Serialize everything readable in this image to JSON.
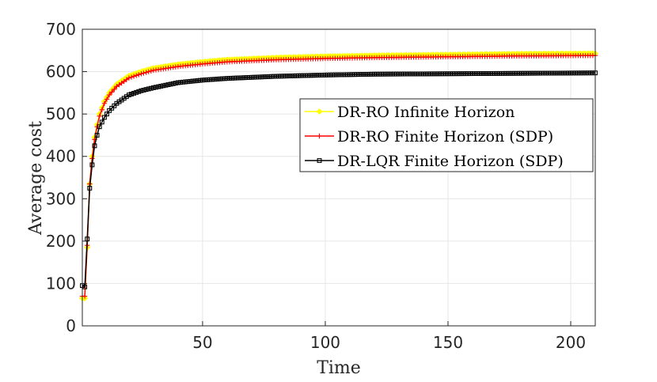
{
  "chart_data": {
    "type": "line",
    "xlabel": "Time",
    "ylabel": "Average cost",
    "xlim": [
      1,
      210
    ],
    "ylim": [
      0,
      700
    ],
    "xticks": [
      50,
      100,
      150,
      200
    ],
    "yticks": [
      0,
      100,
      200,
      300,
      400,
      500,
      600,
      700
    ],
    "xtick_labels": [
      "50",
      "100",
      "150",
      "200"
    ],
    "ytick_labels": [
      "0",
      "100",
      "200",
      "300",
      "400",
      "500",
      "600",
      "700"
    ],
    "grid": true,
    "legend_position": "right",
    "series": [
      {
        "name": "DR-RO Infinite Horizon",
        "color": "#ffff00",
        "marker": "diamond",
        "x": [
          1,
          2,
          3,
          4,
          5,
          6,
          7,
          8,
          10,
          12,
          15,
          20,
          25,
          30,
          40,
          50,
          60,
          80,
          100,
          120,
          150,
          180,
          210
        ],
        "y": [
          65,
          65,
          185,
          335,
          400,
          445,
          475,
          500,
          530,
          550,
          570,
          590,
          600,
          608,
          617,
          623,
          628,
          633,
          636,
          638,
          640,
          642,
          643
        ]
      },
      {
        "name": "DR-RO Finite Horizon (SDP)",
        "color": "#ff0000",
        "marker": "plus",
        "x": [
          1,
          2,
          3,
          4,
          5,
          6,
          7,
          8,
          10,
          12,
          15,
          20,
          25,
          30,
          40,
          50,
          60,
          80,
          100,
          120,
          150,
          180,
          210
        ],
        "y": [
          70,
          70,
          190,
          335,
          395,
          440,
          470,
          495,
          525,
          545,
          565,
          585,
          595,
          603,
          612,
          618,
          623,
          628,
          631,
          633,
          635,
          637,
          638
        ]
      },
      {
        "name": "DR-LQR Finite Horizon (SDP)",
        "color": "#000000",
        "marker": "square",
        "x": [
          1,
          2,
          3,
          4,
          5,
          6,
          7,
          8,
          10,
          12,
          15,
          20,
          25,
          30,
          40,
          50,
          60,
          80,
          100,
          120,
          150,
          180,
          210
        ],
        "y": [
          95,
          92,
          205,
          325,
          380,
          425,
          450,
          470,
          492,
          508,
          525,
          545,
          555,
          562,
          574,
          580,
          584,
          589,
          592,
          594,
          595,
          596,
          597
        ]
      }
    ]
  }
}
